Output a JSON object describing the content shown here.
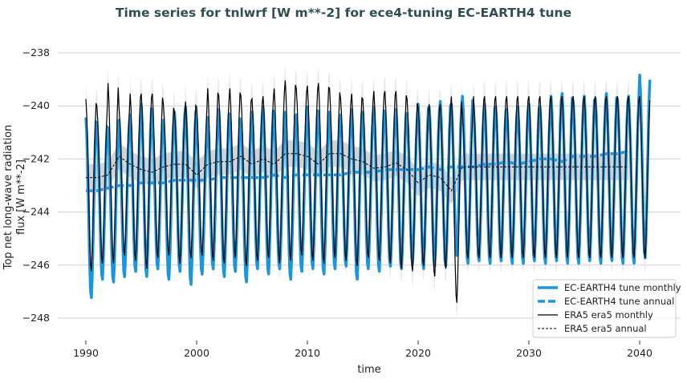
{
  "chart_data": {
    "type": "line",
    "title": "Time series for tnlwrf [W m**-2] for ece4-tuning EC-EARTH4 tune",
    "xlabel": "time",
    "ylabel_lines": [
      "Top net long-wave radiation",
      "flux [W m**-2]"
    ],
    "xlim": [
      1987.5,
      2043
    ],
    "ylim": [
      -248.8,
      -237.6
    ],
    "xticks": [
      1990,
      2000,
      2010,
      2020,
      2030,
      2040
    ],
    "yticks": [
      -238,
      -240,
      -242,
      -244,
      -246,
      -248
    ],
    "grid": "horizontal",
    "legend_position": "lower-right",
    "colors": {
      "ec_earth": "#1a96dd",
      "era5": "#000000",
      "band_monthly": "#e3e3e3",
      "band_annual": "#cfcfcf"
    },
    "years": [
      1990,
      1991,
      1992,
      1993,
      1994,
      1995,
      1996,
      1997,
      1998,
      1999,
      2000,
      2001,
      2002,
      2003,
      2004,
      2005,
      2006,
      2007,
      2008,
      2009,
      2010,
      2011,
      2012,
      2013,
      2014,
      2015,
      2016,
      2017,
      2018,
      2019,
      2020,
      2021,
      2022,
      2023,
      2024,
      2025,
      2026,
      2027,
      2028,
      2029,
      2030,
      2031,
      2032,
      2033,
      2034,
      2035,
      2036,
      2037,
      2038,
      2039,
      2040
    ],
    "series": [
      {
        "name": "EC-EARTH4 tune monthly",
        "style": "solid-thick",
        "yearly_max": [
          -240.4,
          -240.6,
          -240.8,
          -240.5,
          -240.3,
          -239.9,
          -240.6,
          -240.5,
          -240.2,
          -240.0,
          -240.9,
          -240.4,
          -240.1,
          -240.3,
          -240.5,
          -240.2,
          -240.0,
          -240.6,
          -240.2,
          -240.3,
          -240.0,
          -240.4,
          -240.2,
          -240.3,
          -240.1,
          -240.2,
          -240.0,
          -240.2,
          -240.1,
          -240.3,
          -239.9,
          -240.0,
          -239.8,
          -239.9,
          -239.6,
          -240.1,
          -239.9,
          -240.0,
          -240.1,
          -240.0,
          -239.9,
          -240.0,
          -239.6,
          -239.5,
          -239.8,
          -239.6,
          -239.7,
          -239.5,
          -239.7,
          -239.6,
          -238.8
        ],
        "yearly_min": [
          -247.3,
          -246.6,
          -246.7,
          -246.5,
          -246.3,
          -246.5,
          -246.2,
          -246.6,
          -246.3,
          -246.8,
          -246.4,
          -246.2,
          -246.5,
          -246.3,
          -246.7,
          -246.2,
          -246.4,
          -246.2,
          -246.6,
          -246.3,
          -246.2,
          -246.4,
          -246.2,
          -246.1,
          -246.6,
          -246.2,
          -246.3,
          -246.1,
          -246.2,
          -246.0,
          -246.2,
          -246.1,
          -246.1,
          -245.7,
          -246.0,
          -245.9,
          -246.0,
          -245.9,
          -246.0,
          -246.0,
          -245.9,
          -246.0,
          -245.9,
          -246.0,
          -246.0,
          -245.9,
          -246.0,
          -245.9,
          -246.0,
          -246.0,
          -245.8
        ]
      },
      {
        "name": "EC-EARTH4 tune annual",
        "style": "dashed-thick",
        "values": [
          -243.2,
          -243.2,
          -243.1,
          -243.0,
          -243.0,
          -242.9,
          -242.9,
          -242.9,
          -242.8,
          -242.8,
          -242.8,
          -242.8,
          -242.7,
          -242.7,
          -242.7,
          -242.7,
          -242.7,
          -242.6,
          -242.7,
          -242.6,
          -242.6,
          -242.6,
          -242.6,
          -242.6,
          -242.5,
          -242.5,
          -242.5,
          -242.4,
          -242.4,
          -242.4,
          -242.4,
          -242.3,
          -242.4,
          -242.3,
          -242.3,
          -242.3,
          -242.2,
          -242.2,
          -242.1,
          -242.2,
          -242.1,
          -242.0,
          -242.0,
          -242.1,
          -241.9,
          -241.9,
          -241.9,
          -241.8,
          -241.8,
          -241.7,
          -241.7
        ]
      },
      {
        "name": "ERA5 era5 monthly",
        "style": "solid-thin",
        "yearly_max": [
          -239.7,
          -240.0,
          -239.1,
          -240.1,
          -239.5,
          -239.5,
          -239.5,
          -239.9,
          -240.2,
          -239.8,
          -240.0,
          -239.3,
          -239.6,
          -239.3,
          -239.6,
          -239.7,
          -239.6,
          -239.3,
          -239.0,
          -239.3,
          -239.2,
          -239.1,
          -239.3,
          -239.7,
          -239.5,
          -239.7,
          -239.4,
          -239.4,
          -239.4,
          -239.7,
          -240.0,
          -239.9,
          -239.9,
          -239.6,
          -240.3,
          -239.6,
          -239.6,
          -239.6,
          -239.6,
          -239.6,
          -239.6,
          -239.6,
          -239.6,
          -239.6,
          -239.6,
          -239.6,
          -239.6,
          -239.6,
          -239.6,
          -239.6,
          -239.6
        ],
        "yearly_min": [
          -246.3,
          -246.0,
          -246.0,
          -245.7,
          -245.9,
          -246.2,
          -245.8,
          -245.7,
          -246.0,
          -245.8,
          -245.7,
          -245.9,
          -246.0,
          -245.8,
          -246.1,
          -245.9,
          -245.8,
          -246.0,
          -245.9,
          -245.7,
          -245.9,
          -246.0,
          -245.8,
          -245.9,
          -246.1,
          -245.8,
          -245.9,
          -246.0,
          -246.2,
          -246.3,
          -246.1,
          -246.5,
          -246.2,
          -247.5,
          -245.8,
          -245.8,
          -245.8,
          -245.8,
          -245.8,
          -245.8,
          -245.8,
          -245.8,
          -245.8,
          -245.8,
          -245.8,
          -245.8,
          -245.8,
          -245.8,
          -245.8,
          -245.8,
          -245.8
        ]
      },
      {
        "name": "ERA5 era5 annual",
        "style": "dashed-thin",
        "values": [
          -242.7,
          -242.7,
          -242.6,
          -241.9,
          -242.2,
          -242.4,
          -242.5,
          -242.3,
          -242.2,
          -242.2,
          -242.6,
          -242.2,
          -242.1,
          -242.1,
          -241.9,
          -242.2,
          -242.0,
          -242.2,
          -241.8,
          -241.8,
          -241.9,
          -242.2,
          -241.8,
          -241.8,
          -242.0,
          -242.1,
          -242.35,
          -242.3,
          -242.15,
          -242.4,
          -242.9,
          -242.6,
          -242.7,
          -243.2,
          -242.3,
          -242.3,
          -242.3,
          -242.3,
          -242.3,
          -242.3,
          -242.3,
          -242.3,
          -242.3,
          -242.3,
          -242.3,
          -242.3,
          -242.3,
          -242.3,
          -242.3,
          -242.3,
          -242.3
        ]
      }
    ],
    "era5_band_halfwidth": {
      "monthly": 0.6,
      "annual": 0.5
    }
  }
}
